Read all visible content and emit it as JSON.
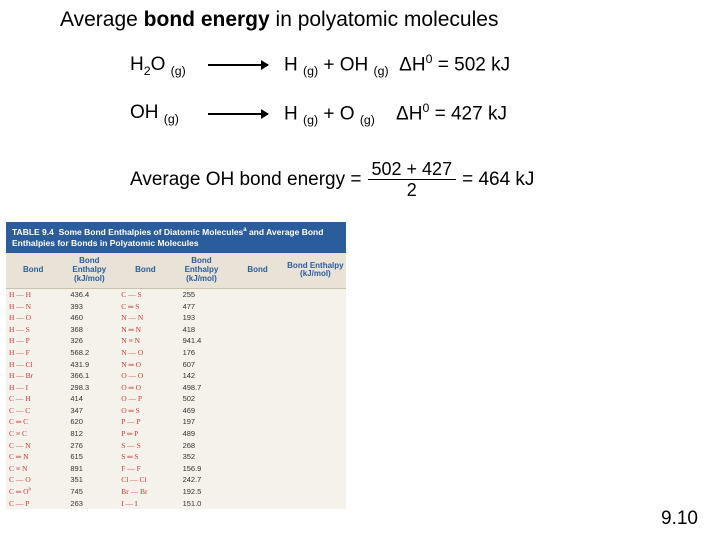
{
  "title": {
    "pre": "Average ",
    "bold": "bond energy",
    "post": " in polyatomic molecules"
  },
  "reactions": [
    {
      "reactant_html": "H<sub>2</sub>O <sub>(g)</sub>",
      "products_html": "H <sub>(g)</sub> + OH <sub>(g)</sub>&nbsp;&nbsp;ΔH<sup>0</sup> = 502 kJ"
    },
    {
      "reactant_html": "OH <sub>(g)</sub>",
      "products_html": "H <sub>(g)</sub> + O <sub>(g)</sub>&nbsp;&nbsp;&nbsp;&nbsp;ΔH<sup>0</sup> = 427 kJ"
    }
  ],
  "average": {
    "label": "Average OH bond energy = ",
    "numerator": "502 + 427",
    "denominator": "2",
    "result": " = 464 kJ"
  },
  "table": {
    "title_html": "TABLE 9.4&nbsp;&nbsp;Some Bond Enthalpies of Diatomic Molecules<sup>a</sup> and Average Bond Enthalpies for Bonds in Polyatomic Molecules",
    "title_bg": "#2b5c9b",
    "title_color": "#ffffff",
    "body_bg": "#f5f2eb",
    "header_bg": "#e8e3d6",
    "header_color": "#2b5c9b",
    "bond_color": "#c63a3a",
    "headers": [
      "Bond",
      "Bond Enthalpy (kJ/mol)",
      "Bond",
      "Bond Enthalpy (kJ/mol)",
      "Bond",
      "Bond Enthalpy (kJ/mol)"
    ],
    "rows": [
      [
        "H — H",
        "436.4",
        "C — S",
        "255",
        "",
        ""
      ],
      [
        "H — N",
        "393",
        "C ═ S",
        "477",
        "",
        ""
      ],
      [
        "H — O",
        "460",
        "N — N",
        "193",
        "",
        ""
      ],
      [
        "H — S",
        "368",
        "N ═ N",
        "418",
        "",
        ""
      ],
      [
        "H — P",
        "326",
        "N ≡ N",
        "941.4",
        "",
        ""
      ],
      [
        "H — F",
        "568.2",
        "N — O",
        "176",
        "",
        ""
      ],
      [
        "H — Cl",
        "431.9",
        "N ═ O",
        "607",
        "",
        ""
      ],
      [
        "H — Br",
        "366.1",
        "O — O",
        "142",
        "",
        ""
      ],
      [
        "H — I",
        "298.3",
        "O ═ O",
        "498.7",
        "",
        ""
      ],
      [
        "C — H",
        "414",
        "O — P",
        "502",
        "",
        ""
      ],
      [
        "C — C",
        "347",
        "O ═ S",
        "469",
        "",
        ""
      ],
      [
        "C ═ C",
        "620",
        "P — P",
        "197",
        "",
        ""
      ],
      [
        "C ≡ C",
        "812",
        "P ═ P",
        "489",
        "",
        ""
      ],
      [
        "C — N",
        "276",
        "S — S",
        "268",
        "",
        ""
      ],
      [
        "C ═ N",
        "615",
        "S ═ S",
        "352",
        "",
        ""
      ],
      [
        "C ≡ N",
        "891",
        "F — F",
        "156.9",
        "",
        ""
      ],
      [
        "C — O",
        "351",
        "Cl — Cl",
        "242.7",
        "",
        ""
      ],
      [
        "C ═ O<sup>b</sup>",
        "745",
        "Br — Br",
        "192.5",
        "",
        ""
      ],
      [
        "C — P",
        "263",
        "I — I",
        "151.0",
        "",
        ""
      ]
    ]
  },
  "pagenum": "9.10"
}
